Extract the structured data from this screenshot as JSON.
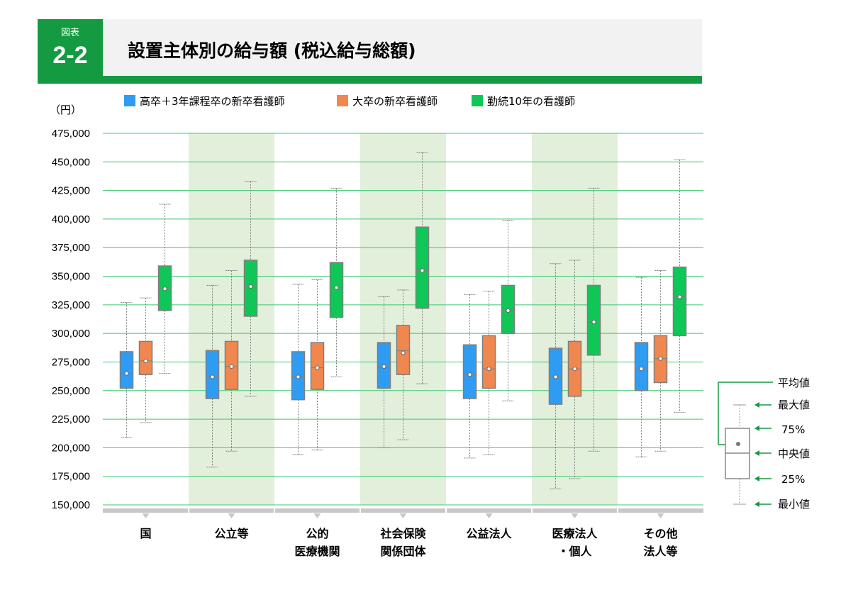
{
  "header": {
    "figure_label": "図表",
    "figure_number": "2-2",
    "title": "設置主体別の給与額 (税込給与総額)"
  },
  "chart_data": {
    "type": "box",
    "title": "設置主体別の給与額 (税込給与総額)",
    "ylabel": "（円）",
    "ylim": [
      150000,
      475000
    ],
    "ytick_step": 25000,
    "ytick_labels": [
      "475,000",
      "450,000",
      "425,000",
      "400,000",
      "375,000",
      "350,000",
      "325,000",
      "300,000",
      "275,000",
      "250,000",
      "225,000",
      "200,000",
      "175,000",
      "150,000"
    ],
    "grid": true,
    "legend_position": "top",
    "categories": [
      {
        "label": "国",
        "lines": [
          "国"
        ],
        "shaded": false
      },
      {
        "label": "公立等",
        "lines": [
          "公立等"
        ],
        "shaded": true
      },
      {
        "label": "公的医療機関",
        "lines": [
          "公的",
          "医療機関"
        ],
        "shaded": false
      },
      {
        "label": "社会保険関係団体",
        "lines": [
          "社会保険",
          "関係団体"
        ],
        "shaded": true
      },
      {
        "label": "公益法人",
        "lines": [
          "公益法人"
        ],
        "shaded": false
      },
      {
        "label": "医療法人・個人",
        "lines": [
          "医療法人",
          "・個人"
        ],
        "shaded": true
      },
      {
        "label": "その他法人等",
        "lines": [
          "その他",
          "法人等"
        ],
        "shaded": false
      }
    ],
    "series": [
      {
        "name": "高卒＋3年課程卒の新卒看護師",
        "color": "#2e9cf3",
        "data": [
          {
            "min": 209000,
            "q1": 252000,
            "median": 265000,
            "q3": 284000,
            "max": 327000,
            "mean": 265000
          },
          {
            "min": 183000,
            "q1": 243000,
            "median": 262000,
            "q3": 285000,
            "max": 342000,
            "mean": 262000
          },
          {
            "min": 194000,
            "q1": 242000,
            "median": 262000,
            "q3": 284000,
            "max": 343000,
            "mean": 262000
          },
          {
            "min": 200000,
            "q1": 252000,
            "median": 271000,
            "q3": 292000,
            "max": 332000,
            "mean": 271000
          },
          {
            "min": 191000,
            "q1": 243000,
            "median": 264000,
            "q3": 290000,
            "max": 334000,
            "mean": 264000
          },
          {
            "min": 164000,
            "q1": 238000,
            "median": 262000,
            "q3": 287000,
            "max": 361000,
            "mean": 262000
          },
          {
            "min": 192000,
            "q1": 250000,
            "median": 269000,
            "q3": 292000,
            "max": 349000,
            "mean": 269000
          }
        ]
      },
      {
        "name": "大卒の新卒看護師",
        "color": "#f0874f",
        "data": [
          {
            "min": 222000,
            "q1": 264000,
            "median": 276000,
            "q3": 293000,
            "max": 331000,
            "mean": 276000
          },
          {
            "min": 197000,
            "q1": 251000,
            "median": 271000,
            "q3": 293000,
            "max": 355000,
            "mean": 271000
          },
          {
            "min": 198000,
            "q1": 251000,
            "median": 270000,
            "q3": 292000,
            "max": 347000,
            "mean": 270000
          },
          {
            "min": 207000,
            "q1": 264000,
            "median": 285000,
            "q3": 307000,
            "max": 338000,
            "mean": 283000
          },
          {
            "min": 194000,
            "q1": 252000,
            "median": 269000,
            "q3": 298000,
            "max": 337000,
            "mean": 269000
          },
          {
            "min": 173000,
            "q1": 245000,
            "median": 269000,
            "q3": 293000,
            "max": 364000,
            "mean": 269000
          },
          {
            "min": 197000,
            "q1": 257000,
            "median": 278000,
            "q3": 298000,
            "max": 355000,
            "mean": 278000
          }
        ]
      },
      {
        "name": "勤続10年の看護師",
        "color": "#0fc756",
        "data": [
          {
            "min": 265000,
            "q1": 320000,
            "median": 339000,
            "q3": 359000,
            "max": 413000,
            "mean": 339000
          },
          {
            "min": 245000,
            "q1": 315000,
            "median": 341000,
            "q3": 364000,
            "max": 433000,
            "mean": 341000
          },
          {
            "min": 262000,
            "q1": 314000,
            "median": 340000,
            "q3": 362000,
            "max": 427000,
            "mean": 340000
          },
          {
            "min": 256000,
            "q1": 322000,
            "median": 355000,
            "q3": 393000,
            "max": 458000,
            "mean": 355000
          },
          {
            "min": 241000,
            "q1": 300000,
            "median": 320000,
            "q3": 342000,
            "max": 399000,
            "mean": 320000
          },
          {
            "min": 197000,
            "q1": 281000,
            "median": 310000,
            "q3": 342000,
            "max": 427000,
            "mean": 310000
          },
          {
            "min": 231000,
            "q1": 298000,
            "median": 332000,
            "q3": 358000,
            "max": 452000,
            "mean": 332000
          }
        ]
      }
    ],
    "key": {
      "mean": "平均値",
      "max": "最大値",
      "q3": "75%",
      "median": "中央値",
      "q1": "25%",
      "min": "最小値"
    }
  }
}
